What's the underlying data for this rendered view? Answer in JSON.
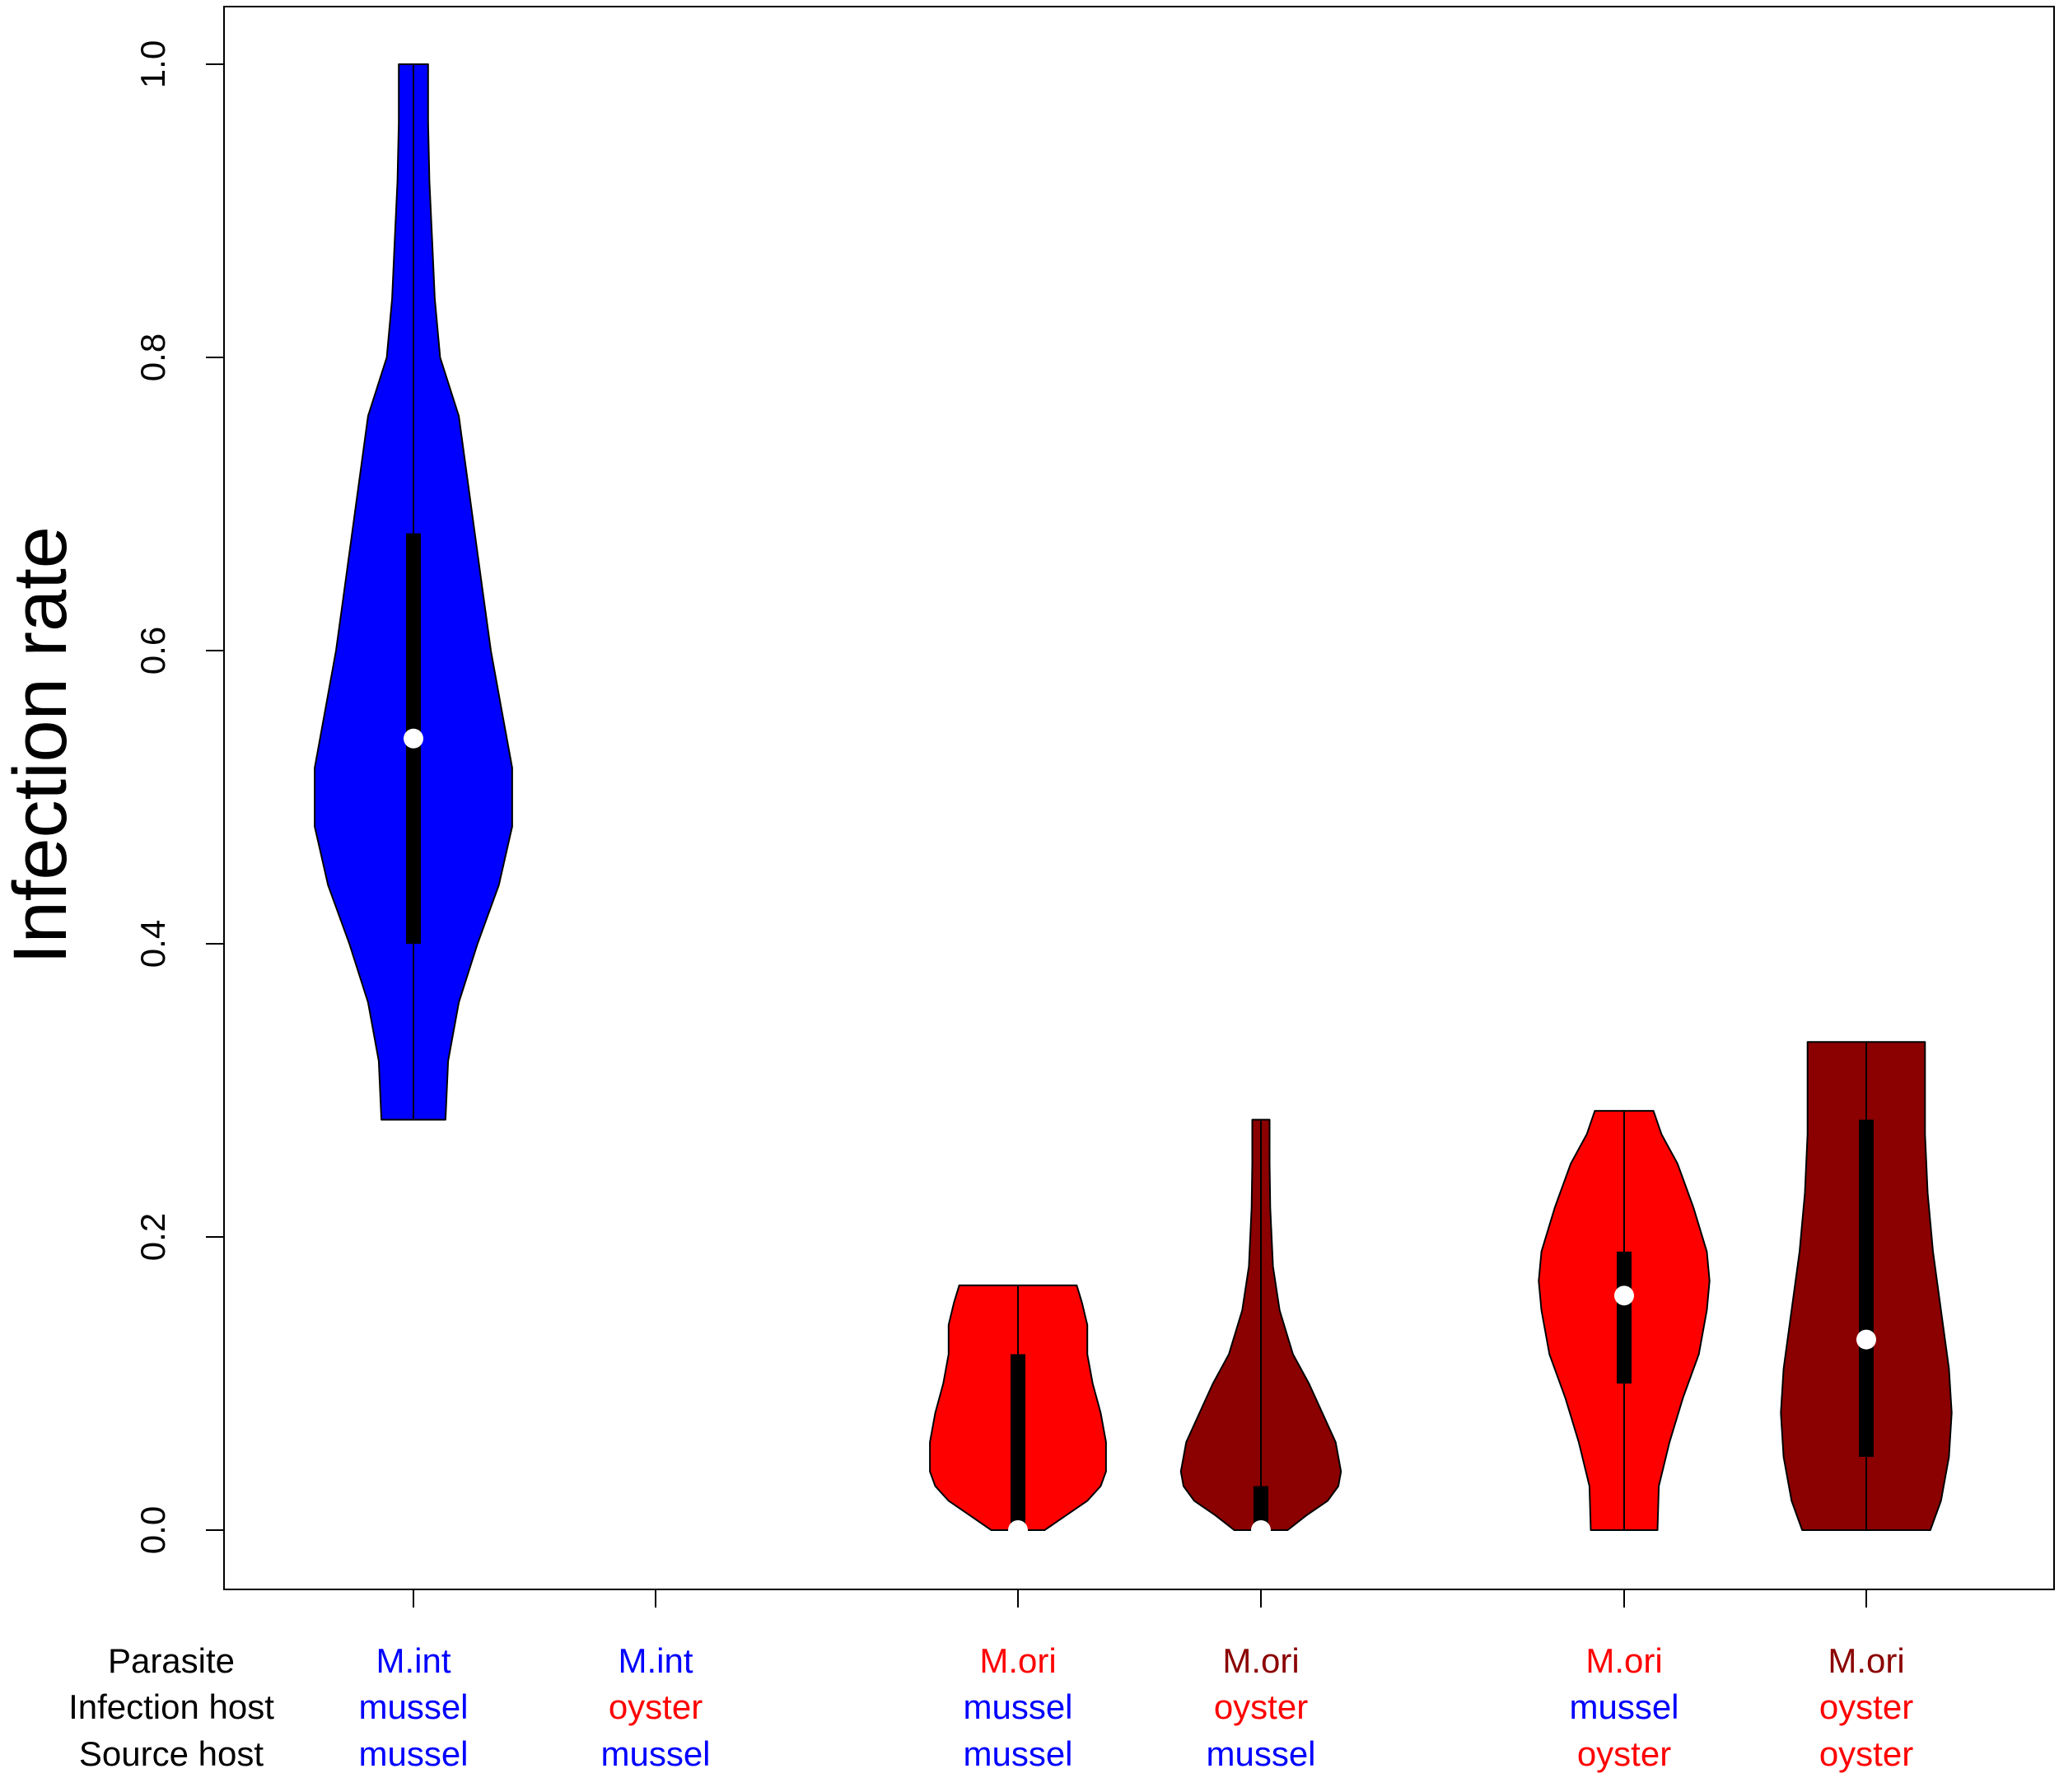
{
  "chart_data": {
    "type": "violin",
    "title": "",
    "xlabel": "",
    "ylabel": "Infection rate",
    "ylim": [
      0,
      1.0
    ],
    "yticks": [
      "0.0",
      "0.2",
      "0.4",
      "0.6",
      "0.8",
      "1.0"
    ],
    "row_labels": [
      "Parasite",
      "Infection host",
      "Source host"
    ],
    "label_colors": {
      "M.int": "#0000ff",
      "M.ori": "#8b0000",
      "mussel": "#0000ff",
      "oyster": "#ff0000"
    },
    "groups": [
      {
        "parasite": "M.int",
        "parasite_color": "#0000ff",
        "infection_host": "mussel",
        "infection_host_color": "#0000ff",
        "source_host": "mussel",
        "source_host_color": "#0000ff",
        "fill": "#0000ff",
        "min": 0.28,
        "max": 1.0,
        "q1": 0.4,
        "q3": 0.68,
        "median": 0.54,
        "density": [
          [
            0.28,
            0.24
          ],
          [
            0.32,
            0.26
          ],
          [
            0.36,
            0.34
          ],
          [
            0.4,
            0.48
          ],
          [
            0.44,
            0.64
          ],
          [
            0.48,
            0.74
          ],
          [
            0.52,
            0.74
          ],
          [
            0.56,
            0.66
          ],
          [
            0.6,
            0.58
          ],
          [
            0.64,
            0.52
          ],
          [
            0.68,
            0.46
          ],
          [
            0.72,
            0.4
          ],
          [
            0.76,
            0.34
          ],
          [
            0.8,
            0.2
          ],
          [
            0.84,
            0.16
          ],
          [
            0.88,
            0.14
          ],
          [
            0.92,
            0.12
          ],
          [
            0.96,
            0.11
          ],
          [
            1.0,
            0.11
          ]
        ]
      },
      {
        "parasite": "M.int",
        "parasite_color": "#0000ff",
        "infection_host": "oyster",
        "infection_host_color": "#ff0000",
        "source_host": "mussel",
        "source_host_color": "#0000ff",
        "fill": null
      },
      {
        "parasite": "M.ori",
        "parasite_color": "#ff0000",
        "infection_host": "mussel",
        "infection_host_color": "#0000ff",
        "source_host": "mussel",
        "source_host_color": "#0000ff",
        "fill": "#ff0000",
        "min": 0.0,
        "max": 0.167,
        "q1": 0.0,
        "q3": 0.12,
        "median": 0.0,
        "density": [
          [
            0.0,
            0.2
          ],
          [
            0.01,
            0.36
          ],
          [
            0.02,
            0.52
          ],
          [
            0.03,
            0.62
          ],
          [
            0.04,
            0.66
          ],
          [
            0.06,
            0.66
          ],
          [
            0.08,
            0.62
          ],
          [
            0.1,
            0.56
          ],
          [
            0.12,
            0.52
          ],
          [
            0.14,
            0.52
          ],
          [
            0.155,
            0.48
          ],
          [
            0.167,
            0.44
          ]
        ]
      },
      {
        "parasite": "M.ori",
        "parasite_color": "#8b0000",
        "infection_host": "oyster",
        "infection_host_color": "#ff0000",
        "source_host": "mussel",
        "source_host_color": "#0000ff",
        "fill": "#8b0000",
        "min": 0.0,
        "max": 0.28,
        "q1": 0.0,
        "q3": 0.03,
        "median": 0.0,
        "density": [
          [
            0.0,
            0.2
          ],
          [
            0.01,
            0.34
          ],
          [
            0.02,
            0.5
          ],
          [
            0.03,
            0.58
          ],
          [
            0.04,
            0.6
          ],
          [
            0.06,
            0.56
          ],
          [
            0.08,
            0.46
          ],
          [
            0.1,
            0.36
          ],
          [
            0.12,
            0.24
          ],
          [
            0.15,
            0.14
          ],
          [
            0.18,
            0.09
          ],
          [
            0.22,
            0.07
          ],
          [
            0.25,
            0.065
          ],
          [
            0.28,
            0.065
          ]
        ]
      },
      {
        "parasite": "M.ori",
        "parasite_color": "#ff0000",
        "infection_host": "mussel",
        "infection_host_color": "#0000ff",
        "source_host": "oyster",
        "source_host_color": "#ff0000",
        "fill": "#ff0000",
        "min": 0.0,
        "max": 0.286,
        "q1": 0.1,
        "q3": 0.19,
        "median": 0.16,
        "density": [
          [
            0.0,
            0.25
          ],
          [
            0.03,
            0.26
          ],
          [
            0.06,
            0.34
          ],
          [
            0.09,
            0.44
          ],
          [
            0.12,
            0.56
          ],
          [
            0.15,
            0.62
          ],
          [
            0.17,
            0.64
          ],
          [
            0.19,
            0.62
          ],
          [
            0.22,
            0.52
          ],
          [
            0.25,
            0.4
          ],
          [
            0.27,
            0.28
          ],
          [
            0.286,
            0.22
          ]
        ]
      },
      {
        "parasite": "M.ori",
        "parasite_color": "#8b0000",
        "infection_host": "oyster",
        "infection_host_color": "#ff0000",
        "source_host": "oyster",
        "source_host_color": "#ff0000",
        "fill": "#8b0000",
        "min": 0.0,
        "max": 0.333,
        "q1": 0.05,
        "q3": 0.28,
        "median": 0.13,
        "density": [
          [
            0.0,
            0.48
          ],
          [
            0.02,
            0.56
          ],
          [
            0.05,
            0.62
          ],
          [
            0.08,
            0.64
          ],
          [
            0.11,
            0.62
          ],
          [
            0.15,
            0.56
          ],
          [
            0.19,
            0.5
          ],
          [
            0.23,
            0.46
          ],
          [
            0.27,
            0.44
          ],
          [
            0.3,
            0.44
          ],
          [
            0.333,
            0.44
          ]
        ]
      }
    ]
  }
}
